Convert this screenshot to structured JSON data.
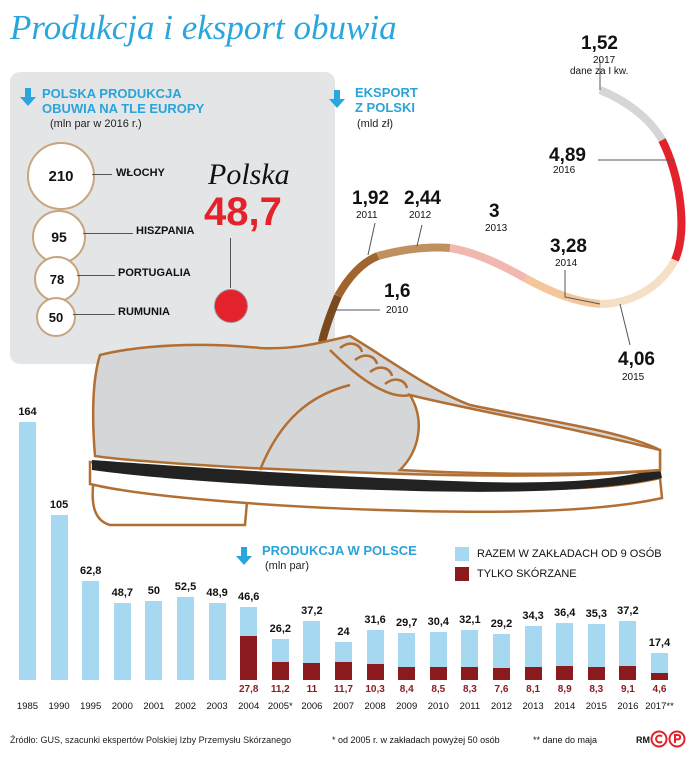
{
  "title": "Produkcja i eksport obuwia",
  "europe": {
    "title_line1": "POLSKA PRODUKCJA",
    "title_line2": "OBUWIA NA TLE EUROPY",
    "unit": "(mln par w 2016 r.)",
    "countries": [
      {
        "name": "WŁOCHY",
        "value": "210"
      },
      {
        "name": "HISZPANIA",
        "value": "95"
      },
      {
        "name": "PORTUGALIA",
        "value": "78"
      },
      {
        "name": "RUMUNIA",
        "value": "50"
      }
    ],
    "poland_label": "Polska",
    "poland_value": "48,7"
  },
  "export": {
    "title_line1": "EKSPORT",
    "title_line2": "Z POLSKI",
    "unit": "(mld zł)",
    "note_2017": "dane za I kw.",
    "points": [
      {
        "year": "2010",
        "value": "1,6"
      },
      {
        "year": "2011",
        "value": "1,92"
      },
      {
        "year": "2012",
        "value": "2,44"
      },
      {
        "year": "2013",
        "value": "3"
      },
      {
        "year": "2014",
        "value": "3,28"
      },
      {
        "year": "2015",
        "value": "4,06"
      },
      {
        "year": "2016",
        "value": "4,89"
      },
      {
        "year": "2017",
        "value": "1,52"
      }
    ]
  },
  "production": {
    "title": "PRODUKCJA W POLSCE",
    "unit": "(mln par)",
    "legend_total": "RAZEM W ZAKŁADACH OD 9 OSÓB",
    "legend_leather": "TYLKO SKÓRZANE"
  },
  "colors": {
    "accent": "#29a6dd",
    "bar_total": "#a7d8f2",
    "bar_leather": "#8b1a1f",
    "poland_red": "#e4222b",
    "circle_border": "#c8a57e",
    "panel": "#e3e5e7",
    "shoe_grey": "#d4d6d8",
    "shoe_brown": "#b26f34"
  },
  "chart_data": [
    {
      "type": "bar",
      "title": "PRODUKCJA W POLSCE",
      "ylabel": "(mln par)",
      "categories": [
        "1985",
        "1990",
        "1995",
        "2000",
        "2001",
        "2002",
        "2003",
        "2004",
        "2005*",
        "2006",
        "2007",
        "2008",
        "2009",
        "2010",
        "2011",
        "2012",
        "2013",
        "2014",
        "2015",
        "2016",
        "2017**"
      ],
      "series": [
        {
          "name": "RAZEM W ZAKŁADACH OD 9 OSÓB",
          "values": [
            164,
            105,
            62.8,
            48.7,
            50,
            52.5,
            48.9,
            46.6,
            26.2,
            37.2,
            24,
            31.6,
            29.7,
            30.4,
            32.1,
            29.2,
            34.3,
            36.4,
            35.3,
            37.2,
            17.4
          ],
          "labels": [
            "164",
            "105",
            "62,8",
            "48,7",
            "50",
            "52,5",
            "48,9",
            "46,6",
            "26,2",
            "37,2",
            "24",
            "31,6",
            "29,7",
            "30,4",
            "32,1",
            "29,2",
            "34,3",
            "36,4",
            "35,3",
            "37,2",
            "17,4"
          ]
        },
        {
          "name": "TYLKO SKÓRZANE",
          "values": [
            null,
            null,
            null,
            null,
            null,
            null,
            null,
            27.8,
            11.2,
            11,
            11.7,
            10.3,
            8.4,
            8.5,
            8.3,
            7.6,
            8.1,
            8.9,
            8.3,
            9.1,
            4.6
          ],
          "labels": [
            "",
            "",
            "",
            "",
            "",
            "",
            "",
            "27,8",
            "11,2",
            "11",
            "11,7",
            "10,3",
            "8,4",
            "8,5",
            "8,3",
            "7,6",
            "8,1",
            "8,9",
            "8,3",
            "9,1",
            "4,6"
          ]
        }
      ],
      "ylim": [
        0,
        164
      ]
    },
    {
      "type": "line",
      "title": "EKSPORT Z POLSKI",
      "ylabel": "(mld zł)",
      "x": [
        "2010",
        "2011",
        "2012",
        "2013",
        "2014",
        "2015",
        "2016",
        "2017"
      ],
      "values": [
        1.6,
        1.92,
        2.44,
        3,
        3.28,
        4.06,
        4.89,
        1.52
      ]
    },
    {
      "type": "bar",
      "title": "POLSKA PRODUKCJA OBUWIA NA TLE EUROPY",
      "ylabel": "(mln par w 2016 r.)",
      "categories": [
        "WŁOCHY",
        "HISZPANIA",
        "PORTUGALIA",
        "RUMUNIA",
        "Polska"
      ],
      "values": [
        210,
        95,
        78,
        50,
        48.7
      ]
    }
  ],
  "footer": {
    "source": "Źródło: GUS, szacunki ekspertów Polskiej Izby Przemysłu Skórzanego",
    "note1": "* od 2005 r. w zakładach powyżej 50 osób",
    "note2": "** dane do maja",
    "initials": "RM"
  }
}
